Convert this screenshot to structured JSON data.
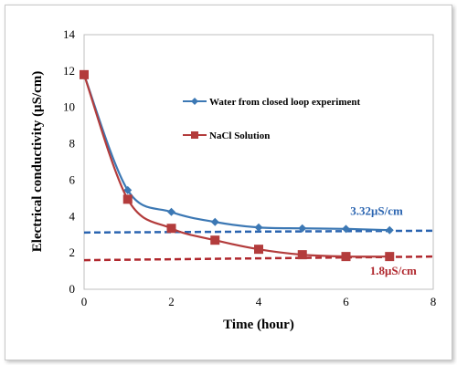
{
  "chart_data": {
    "type": "line",
    "title": "",
    "xlabel": "Time (hour)",
    "ylabel": "Electrical conductivity (μS/cm)",
    "xlim": [
      0,
      8
    ],
    "ylim": [
      0,
      14
    ],
    "xticks": [
      0,
      2,
      4,
      6,
      8
    ],
    "yticks": [
      0,
      2,
      4,
      6,
      8,
      10,
      12,
      14
    ],
    "grid": false,
    "legend_position": "top-right",
    "series": [
      {
        "name": "Water from closed loop experiment",
        "color": "#3c78b4",
        "marker": "diamond",
        "x": [
          0,
          1,
          2,
          3,
          4,
          5,
          6,
          7
        ],
        "y": [
          11.8,
          5.45,
          4.25,
          3.7,
          3.4,
          3.35,
          3.32,
          3.25
        ]
      },
      {
        "name": "NaCl Solution",
        "color": "#b33c3c",
        "marker": "square",
        "x": [
          0,
          1,
          2,
          3,
          4,
          5,
          6,
          7
        ],
        "y": [
          11.8,
          4.95,
          3.35,
          2.7,
          2.2,
          1.9,
          1.8,
          1.8
        ]
      }
    ],
    "reference_lines": [
      {
        "name": "3.32μS/cm",
        "color": "#2a64b0",
        "x": [
          0,
          8
        ],
        "y": [
          3.12,
          3.22
        ]
      },
      {
        "name": "1.8μS/cm",
        "color": "#b0282e",
        "x": [
          0,
          8
        ],
        "y": [
          1.6,
          1.8
        ]
      }
    ],
    "annotations": [
      {
        "text": "3.32μS/cm",
        "color": "#2a64b0",
        "x": 6.1,
        "y": 4.1
      },
      {
        "text": "1.8μS/cm",
        "color": "#b0282e",
        "x": 6.55,
        "y": 0.8
      }
    ]
  }
}
